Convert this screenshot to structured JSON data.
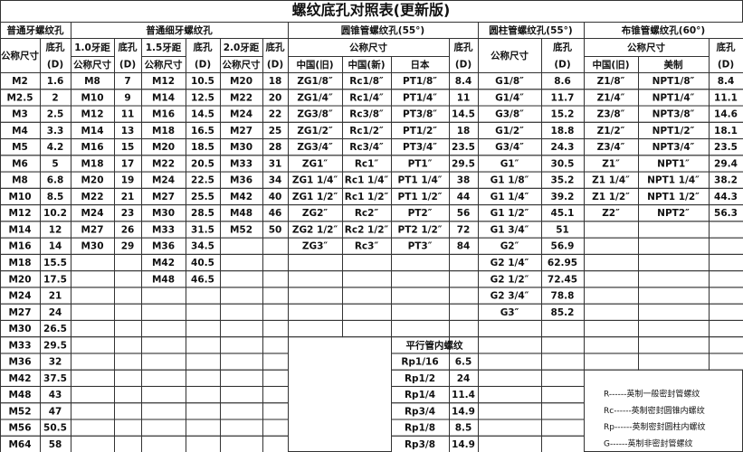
{
  "title": "螺纹底孔对照表(更新版)",
  "coarse": {
    "title": "普通牙螺纹孔",
    "size_header": "公称尺寸",
    "hole_header": [
      "底孔",
      "(D)"
    ],
    "rows": [
      [
        "M2",
        1.6
      ],
      [
        "M2.5",
        2
      ],
      [
        "M3",
        2.5
      ],
      [
        "M4",
        3.3
      ],
      [
        "M5",
        4.2
      ],
      [
        "M6",
        5
      ],
      [
        "M8",
        6.8
      ],
      [
        "M10",
        8.5
      ],
      [
        "M12",
        10.2
      ],
      [
        "M14",
        12
      ],
      [
        "M16",
        14
      ],
      [
        "M18",
        15.5
      ],
      [
        "M20",
        17.5
      ],
      [
        "M24",
        21
      ],
      [
        "M27",
        24
      ],
      [
        "M30",
        26.5
      ],
      [
        "M33",
        29.5
      ],
      [
        "M36",
        32
      ],
      [
        "M42",
        37.5
      ],
      [
        "M48",
        43
      ],
      [
        "M52",
        47
      ],
      [
        "M56",
        50.5
      ],
      [
        "M64",
        58
      ]
    ]
  },
  "fine": {
    "title": "普通细牙螺纹孔",
    "groups": [
      {
        "pitch": "1.0牙距",
        "size_header": "公称尺寸",
        "hole_header": [
          "底孔",
          "(D)"
        ],
        "rows": [
          [
            "M8",
            7
          ],
          [
            "M10",
            9
          ],
          [
            "M12",
            11
          ],
          [
            "M14",
            13
          ],
          [
            "M16",
            15
          ],
          [
            "M18",
            17
          ],
          [
            "M20",
            19
          ],
          [
            "M22",
            21
          ],
          [
            "M24",
            23
          ],
          [
            "M27",
            26
          ],
          [
            "M30",
            29
          ]
        ]
      },
      {
        "pitch": "1.5牙距",
        "size_header": "公称尺寸",
        "hole_header": [
          "底孔",
          "(D)"
        ],
        "rows": [
          [
            "M12",
            10.5
          ],
          [
            "M14",
            12.5
          ],
          [
            "M16",
            14.5
          ],
          [
            "M18",
            16.5
          ],
          [
            "M20",
            18.5
          ],
          [
            "M22",
            20.5
          ],
          [
            "M24",
            22.5
          ],
          [
            "M27",
            25.5
          ],
          [
            "M30",
            28.5
          ],
          [
            "M33",
            31.5
          ],
          [
            "M36",
            34.5
          ],
          [
            "M42",
            40.5
          ],
          [
            "M48",
            46.5
          ]
        ]
      },
      {
        "pitch": "2.0牙距",
        "size_header": "公称尺寸",
        "hole_header": [
          "底孔",
          "(D)"
        ],
        "rows": [
          [
            "M20",
            18
          ],
          [
            "M22",
            20
          ],
          [
            "M24",
            22
          ],
          [
            "M27",
            25
          ],
          [
            "M30",
            28
          ],
          [
            "M33",
            31
          ],
          [
            "M36",
            34
          ],
          [
            "M42",
            40
          ],
          [
            "M48",
            46
          ],
          [
            "M52",
            50
          ]
        ]
      }
    ]
  },
  "taper55": {
    "title": "圆锥管螺纹孔(55°)",
    "size_header": "公称尺寸",
    "columns": [
      "中国(旧)",
      "中国(新)",
      "日本"
    ],
    "hole_header": [
      "底孔",
      "(D)"
    ],
    "rows": [
      [
        "ZG1/8″",
        "Rc1/8″",
        "PT1/8″",
        8.4
      ],
      [
        "ZG1/4″",
        "Rc1/4″",
        "PT1/4″",
        11
      ],
      [
        "ZG3/8″",
        "Rc3/8″",
        "PT3/8″",
        14.5
      ],
      [
        "ZG1/2″",
        "Rc1/2″",
        "PT1/2″",
        18
      ],
      [
        "ZG3/4″",
        "Rc3/4″",
        "PT3/4″",
        23.5
      ],
      [
        "ZG1″",
        "Rc1″",
        "PT1″",
        29.5
      ],
      [
        "ZG1 1/4″",
        "Rc1 1/4″",
        "PT1 1/4″",
        38
      ],
      [
        "ZG1 1/2″",
        "Rc1 1/2″",
        "PT1 1/2″",
        44
      ],
      [
        "ZG2″",
        "Rc2″",
        "PT2″",
        56
      ],
      [
        "ZG2 1/2″",
        "Rc2 1/2″",
        "PT2 1/2″",
        72
      ],
      [
        "ZG3″",
        "Rc3″",
        "PT3″",
        84
      ]
    ]
  },
  "parallel_internal": {
    "title": "平行管内螺纹",
    "rows": [
      [
        "Rp1/16",
        6.5
      ],
      [
        "Rp1/2",
        24
      ],
      [
        "Rp1/4",
        11.4
      ],
      [
        "Rp3/4",
        14.9
      ],
      [
        "Rp1/8",
        8.5
      ],
      [
        "Rp3/8",
        14.9
      ]
    ]
  },
  "parallel55": {
    "title": "圆柱管螺纹孔(55°)",
    "size_header": "公称尺寸",
    "hole_header": [
      "底孔",
      "(D)"
    ],
    "rows": [
      [
        "G1/8″",
        8.6
      ],
      [
        "G1/4″",
        11.7
      ],
      [
        "G3/8″",
        15.2
      ],
      [
        "G1/2″",
        18.8
      ],
      [
        "G3/4″",
        24.3
      ],
      [
        "G1″",
        30.5
      ],
      [
        "G1 1/8″",
        35.2
      ],
      [
        "G1 1/4″",
        39.2
      ],
      [
        "G1 1/2″",
        45.1
      ],
      [
        "G1 3/4″",
        51
      ],
      [
        "G2″",
        56.9
      ],
      [
        "G2 1/4″",
        62.95
      ],
      [
        "G2 1/2″",
        72.45
      ],
      [
        "G2 3/4″",
        78.8
      ],
      [
        "G3″",
        85.2
      ]
    ]
  },
  "taper60": {
    "title": "布锥管螺纹孔(60°)",
    "size_header": "公称尺寸",
    "columns": [
      "中国(旧)",
      "美制"
    ],
    "hole_header": [
      "底孔",
      "(D)"
    ],
    "rows": [
      [
        "Z1/8″",
        "NPT1/8″",
        8.4
      ],
      [
        "Z1/4″",
        "NPT1/4″",
        11.1
      ],
      [
        "Z3/8″",
        "NPT3/8″",
        14.6
      ],
      [
        "Z1/2″",
        "NPT1/2″",
        18.1
      ],
      [
        "Z3/4″",
        "NPT3/4″",
        23.5
      ],
      [
        "Z1″",
        "NPT1″",
        29.4
      ],
      [
        "Z1 1/4″",
        "NPT1 1/4″",
        38.2
      ],
      [
        "Z1 1/2″",
        "NPT1 1/2″",
        44.3
      ],
      [
        "Z2″",
        "NPT2″",
        56.3
      ]
    ]
  },
  "legend": [
    "R------英制一般密封管螺纹",
    "Rc------英制密封圆锥内螺纹",
    "Rp------英制密封圆柱内螺纹",
    "G------英制非密封管螺纹"
  ]
}
